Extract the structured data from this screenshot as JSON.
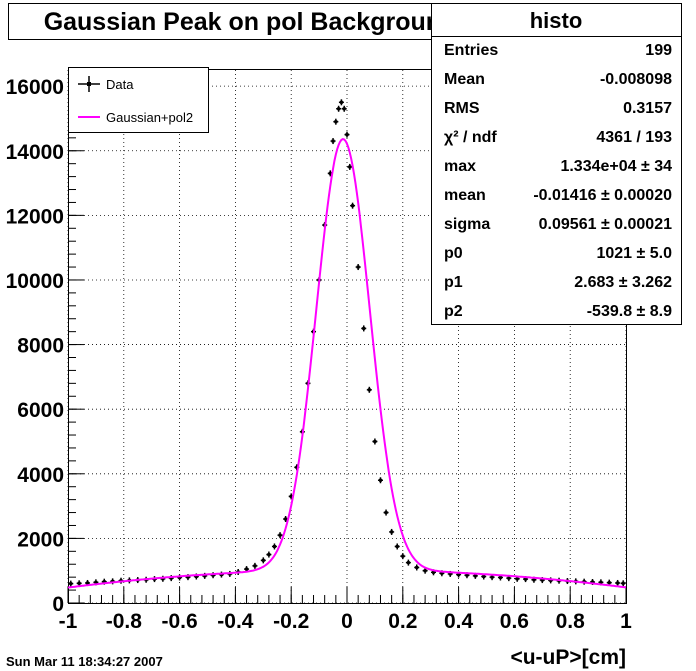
{
  "title": "Gaussian Peak on pol Background",
  "footer_timestamp": "Sun Mar 11 18:34:27 2007",
  "stats": {
    "title": "histo",
    "rows": [
      {
        "label": "Entries",
        "value": "199"
      },
      {
        "label": "Mean",
        "value": "-0.008098"
      },
      {
        "label": "RMS",
        "value": "0.3157"
      },
      {
        "label": "χ² / ndf",
        "value": "4361 / 193"
      },
      {
        "label": "max",
        "value": "1.334e+04 ± 34"
      },
      {
        "label": "mean",
        "value": "-0.01416 ± 0.00020"
      },
      {
        "label": "sigma",
        "value": "0.09561 ± 0.00021"
      },
      {
        "label": "p0",
        "value": "1021 ± 5.0"
      },
      {
        "label": "p1",
        "value": "2.683 ± 3.262"
      },
      {
        "label": "p2",
        "value": "-539.8 ± 8.9"
      }
    ]
  },
  "legend": {
    "items": [
      {
        "label": "Data",
        "marker": "errorbar",
        "color": "#000000"
      },
      {
        "label": "Gaussian+pol2",
        "marker": "line",
        "color": "#ff00ff"
      }
    ]
  },
  "chart_data": {
    "type": "scatter",
    "xlabel": "<u-uP>[cm]",
    "ylabel": "",
    "xlim": [
      -1,
      1
    ],
    "ylim": [
      0,
      16500
    ],
    "x_ticks": [
      -1,
      -0.8,
      -0.6,
      -0.4,
      -0.2,
      0,
      0.2,
      0.4,
      0.6,
      0.8,
      1
    ],
    "x_tick_labels": [
      "-1",
      "-0.8",
      "-0.6",
      "-0.4",
      "-0.2",
      "0",
      "0.2",
      "0.4",
      "0.6",
      "0.8",
      "1"
    ],
    "y_ticks": [
      0,
      2000,
      4000,
      6000,
      8000,
      10000,
      12000,
      14000,
      16000
    ],
    "y_tick_labels": [
      "0",
      "2000",
      "4000",
      "6000",
      "8000",
      "10000",
      "12000",
      "14000",
      "16000"
    ],
    "grid": true,
    "legend_position": "top-left",
    "series": [
      {
        "name": "Data",
        "style": "errorbar",
        "color": "#000000",
        "points": [
          [
            -0.99,
            600
          ],
          [
            -0.96,
            610
          ],
          [
            -0.93,
            620
          ],
          [
            -0.9,
            640
          ],
          [
            -0.87,
            660
          ],
          [
            -0.84,
            670
          ],
          [
            -0.81,
            690
          ],
          [
            -0.78,
            700
          ],
          [
            -0.75,
            710
          ],
          [
            -0.72,
            720
          ],
          [
            -0.69,
            740
          ],
          [
            -0.66,
            750
          ],
          [
            -0.63,
            770
          ],
          [
            -0.6,
            790
          ],
          [
            -0.57,
            800
          ],
          [
            -0.54,
            820
          ],
          [
            -0.51,
            840
          ],
          [
            -0.48,
            860
          ],
          [
            -0.45,
            880
          ],
          [
            -0.42,
            900
          ],
          [
            -0.39,
            960
          ],
          [
            -0.36,
            1050
          ],
          [
            -0.33,
            1150
          ],
          [
            -0.3,
            1320
          ],
          [
            -0.28,
            1500
          ],
          [
            -0.26,
            1750
          ],
          [
            -0.24,
            2100
          ],
          [
            -0.22,
            2600
          ],
          [
            -0.2,
            3300
          ],
          [
            -0.18,
            4200
          ],
          [
            -0.16,
            5300
          ],
          [
            -0.14,
            6800
          ],
          [
            -0.12,
            8400
          ],
          [
            -0.1,
            10000
          ],
          [
            -0.08,
            11700
          ],
          [
            -0.06,
            13300
          ],
          [
            -0.05,
            14300
          ],
          [
            -0.04,
            14900
          ],
          [
            -0.03,
            15300
          ],
          [
            -0.02,
            15500
          ],
          [
            -0.01,
            15300
          ],
          [
            0.0,
            14500
          ],
          [
            0.01,
            13500
          ],
          [
            0.02,
            12300
          ],
          [
            0.04,
            10400
          ],
          [
            0.06,
            8500
          ],
          [
            0.08,
            6600
          ],
          [
            0.1,
            5000
          ],
          [
            0.12,
            3800
          ],
          [
            0.14,
            2800
          ],
          [
            0.16,
            2200
          ],
          [
            0.18,
            1750
          ],
          [
            0.2,
            1450
          ],
          [
            0.22,
            1250
          ],
          [
            0.25,
            1100
          ],
          [
            0.28,
            1000
          ],
          [
            0.31,
            950
          ],
          [
            0.34,
            920
          ],
          [
            0.37,
            900
          ],
          [
            0.4,
            880
          ],
          [
            0.43,
            860
          ],
          [
            0.46,
            840
          ],
          [
            0.49,
            820
          ],
          [
            0.52,
            800
          ],
          [
            0.55,
            790
          ],
          [
            0.58,
            770
          ],
          [
            0.61,
            750
          ],
          [
            0.64,
            740
          ],
          [
            0.67,
            720
          ],
          [
            0.7,
            710
          ],
          [
            0.73,
            700
          ],
          [
            0.76,
            690
          ],
          [
            0.79,
            680
          ],
          [
            0.82,
            670
          ],
          [
            0.85,
            660
          ],
          [
            0.88,
            650
          ],
          [
            0.91,
            640
          ],
          [
            0.94,
            630
          ],
          [
            0.97,
            620
          ],
          [
            0.99,
            610
          ]
        ]
      },
      {
        "name": "Gaussian+pol2",
        "style": "line",
        "color": "#ff00ff",
        "function": {
          "max": 13340,
          "mean": -0.01416,
          "sigma": 0.09561,
          "p0": 1021,
          "p1": 2.683,
          "p2": -539.8
        }
      }
    ]
  }
}
